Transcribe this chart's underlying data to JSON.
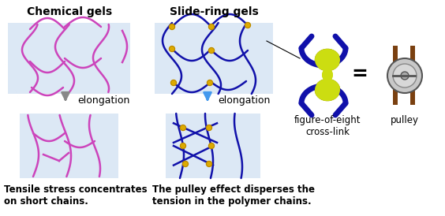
{
  "bg_color": "#ffffff",
  "panel_bg": "#dce8f5",
  "chem_color": "#cc44bb",
  "slide_color": "#1111aa",
  "gold_color": "#ddaa00",
  "arrow_gray": "#888888",
  "arrow_blue": "#4499ee",
  "title_chem": "Chemical gels",
  "title_slide": "Slide-ring gels",
  "label_fig8": "figure-of-eight\ncross-link",
  "label_pulley": "pulley",
  "label_arrow": "elongation",
  "text_chem": "Tensile stress concentrates\non short chains.",
  "text_slide": "The pulley effect disperses the\ntension in the polymer chains.",
  "equals_sign": "=",
  "fig8_yellow": "#ccdd11",
  "fig8_blue": "#1111aa",
  "pulley_brown": "#7a4010",
  "pulley_gray": "#bbbbbb",
  "pulley_dark": "#555555"
}
